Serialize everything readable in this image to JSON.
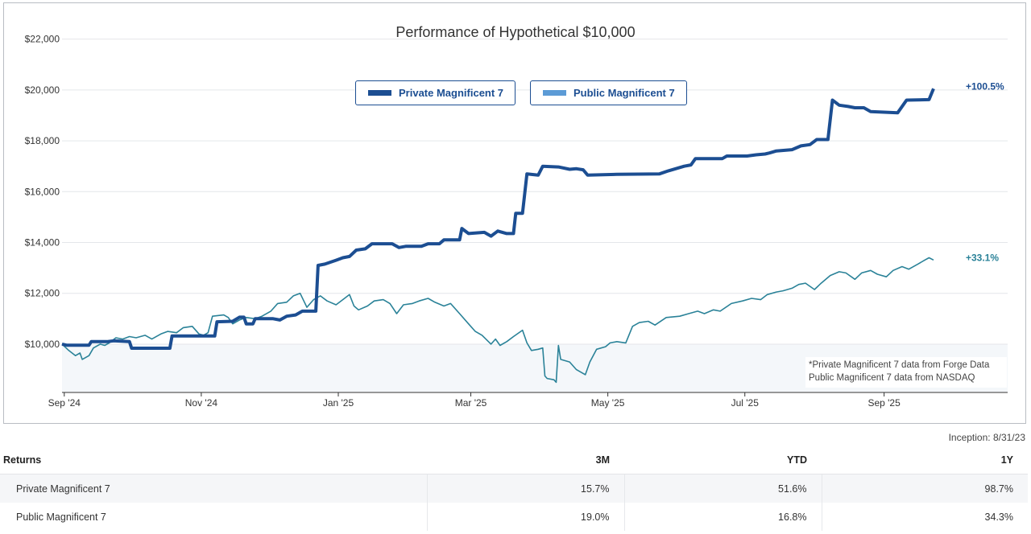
{
  "chart_data": {
    "type": "line",
    "title": "Performance of Hypothetical $10,000",
    "x_tick_labels": [
      "Sep '24",
      "Nov '24",
      "Jan '25",
      "Mar '25",
      "May '25",
      "Jul '25",
      "Sep '25"
    ],
    "y_tick_labels": [
      "$10,000",
      "$12,000",
      "$14,000",
      "$16,000",
      "$18,000",
      "$20,000",
      "$22,000"
    ],
    "y_ticks": [
      10000,
      12000,
      14000,
      16000,
      18000,
      20000,
      22000
    ],
    "ylim": [
      8100,
      22400
    ],
    "xlim": [
      "2024-08-31",
      "2025-10-26"
    ],
    "x_tick_dates": [
      "2024-09-01",
      "2024-11-01",
      "2025-01-01",
      "2025-03-01",
      "2025-05-01",
      "2025-07-01",
      "2025-09-01"
    ],
    "baseline": 10000,
    "grid": true,
    "legend_position": "top-center",
    "note_lines": [
      "*Private Magnificent 7 data from Forge Data",
      "Public Magnificent 7 data from NASDAQ"
    ],
    "series": [
      {
        "name": "Private Magnificent 7",
        "color": "#1c4e92",
        "end_label": "+100.5%",
        "points": [
          [
            "2024-08-31",
            10000
          ],
          [
            "2024-09-02",
            9960
          ],
          [
            "2024-09-12",
            9960
          ],
          [
            "2024-09-13",
            10100
          ],
          [
            "2024-09-20",
            10100
          ],
          [
            "2024-09-23",
            10130
          ],
          [
            "2024-09-30",
            10100
          ],
          [
            "2024-10-01",
            9840
          ],
          [
            "2024-10-18",
            9840
          ],
          [
            "2024-10-19",
            10320
          ],
          [
            "2024-11-07",
            10320
          ],
          [
            "2024-11-08",
            10880
          ],
          [
            "2024-11-15",
            10900
          ],
          [
            "2024-11-18",
            11060
          ],
          [
            "2024-11-20",
            11060
          ],
          [
            "2024-11-21",
            10800
          ],
          [
            "2024-11-24",
            10800
          ],
          [
            "2024-11-25",
            11000
          ],
          [
            "2024-12-03",
            11000
          ],
          [
            "2024-12-06",
            10950
          ],
          [
            "2024-12-09",
            11100
          ],
          [
            "2024-12-13",
            11150
          ],
          [
            "2024-12-16",
            11300
          ],
          [
            "2024-12-22",
            11300
          ],
          [
            "2024-12-23",
            13100
          ],
          [
            "2024-12-26",
            13150
          ],
          [
            "2024-12-31",
            13300
          ],
          [
            "2025-01-03",
            13400
          ],
          [
            "2025-01-06",
            13450
          ],
          [
            "2025-01-09",
            13700
          ],
          [
            "2025-01-13",
            13750
          ],
          [
            "2025-01-16",
            13950
          ],
          [
            "2025-01-25",
            13950
          ],
          [
            "2025-01-28",
            13800
          ],
          [
            "2025-01-31",
            13850
          ],
          [
            "2025-02-07",
            13850
          ],
          [
            "2025-02-10",
            13950
          ],
          [
            "2025-02-15",
            13950
          ],
          [
            "2025-02-17",
            14100
          ],
          [
            "2025-02-24",
            14100
          ],
          [
            "2025-02-25",
            14550
          ],
          [
            "2025-02-28",
            14350
          ],
          [
            "2025-03-07",
            14400
          ],
          [
            "2025-03-10",
            14250
          ],
          [
            "2025-03-13",
            14450
          ],
          [
            "2025-03-17",
            14350
          ],
          [
            "2025-03-20",
            14350
          ],
          [
            "2025-03-21",
            15150
          ],
          [
            "2025-03-24",
            15150
          ],
          [
            "2025-03-26",
            16700
          ],
          [
            "2025-03-31",
            16650
          ],
          [
            "2025-04-02",
            17000
          ],
          [
            "2025-04-09",
            16970
          ],
          [
            "2025-04-14",
            16880
          ],
          [
            "2025-04-17",
            16900
          ],
          [
            "2025-04-20",
            16860
          ],
          [
            "2025-04-22",
            16650
          ],
          [
            "2025-05-05",
            16680
          ],
          [
            "2025-05-24",
            16700
          ],
          [
            "2025-05-28",
            16820
          ],
          [
            "2025-06-04",
            17000
          ],
          [
            "2025-06-07",
            17050
          ],
          [
            "2025-06-09",
            17300
          ],
          [
            "2025-06-21",
            17300
          ],
          [
            "2025-06-23",
            17400
          ],
          [
            "2025-07-02",
            17400
          ],
          [
            "2025-07-06",
            17450
          ],
          [
            "2025-07-10",
            17480
          ],
          [
            "2025-07-12",
            17520
          ],
          [
            "2025-07-15",
            17600
          ],
          [
            "2025-07-22",
            17650
          ],
          [
            "2025-07-26",
            17800
          ],
          [
            "2025-07-30",
            17850
          ],
          [
            "2025-08-02",
            18050
          ],
          [
            "2025-08-07",
            18050
          ],
          [
            "2025-08-09",
            19600
          ],
          [
            "2025-08-12",
            19400
          ],
          [
            "2025-08-16",
            19350
          ],
          [
            "2025-08-19",
            19300
          ],
          [
            "2025-08-23",
            19300
          ],
          [
            "2025-08-26",
            19150
          ],
          [
            "2025-09-07",
            19100
          ],
          [
            "2025-09-11",
            19600
          ],
          [
            "2025-09-21",
            19620
          ],
          [
            "2025-09-23",
            20050
          ]
        ]
      },
      {
        "name": "Public Magnificent 7",
        "color": "#2a8298",
        "end_label": "+33.1%",
        "points": [
          [
            "2024-08-31",
            10000
          ],
          [
            "2024-09-03",
            9750
          ],
          [
            "2024-09-06",
            9550
          ],
          [
            "2024-09-08",
            9650
          ],
          [
            "2024-09-09",
            9400
          ],
          [
            "2024-09-12",
            9550
          ],
          [
            "2024-09-14",
            9850
          ],
          [
            "2024-09-17",
            10000
          ],
          [
            "2024-09-19",
            9950
          ],
          [
            "2024-09-21",
            10050
          ],
          [
            "2024-09-24",
            10250
          ],
          [
            "2024-09-27",
            10200
          ],
          [
            "2024-09-30",
            10300
          ],
          [
            "2024-10-03",
            10250
          ],
          [
            "2024-10-07",
            10350
          ],
          [
            "2024-10-10",
            10200
          ],
          [
            "2024-10-14",
            10400
          ],
          [
            "2024-10-17",
            10500
          ],
          [
            "2024-10-21",
            10450
          ],
          [
            "2024-10-24",
            10650
          ],
          [
            "2024-10-28",
            10700
          ],
          [
            "2024-10-31",
            10400
          ],
          [
            "2024-11-02",
            10350
          ],
          [
            "2024-11-04",
            10450
          ],
          [
            "2024-11-06",
            11100
          ],
          [
            "2024-11-11",
            11150
          ],
          [
            "2024-11-13",
            11050
          ],
          [
            "2024-11-15",
            10800
          ],
          [
            "2024-11-18",
            10950
          ],
          [
            "2024-11-21",
            11050
          ],
          [
            "2024-11-25",
            11000
          ],
          [
            "2024-11-28",
            11100
          ],
          [
            "2024-12-02",
            11300
          ],
          [
            "2024-12-05",
            11600
          ],
          [
            "2024-12-09",
            11650
          ],
          [
            "2024-12-12",
            11900
          ],
          [
            "2024-12-15",
            12000
          ],
          [
            "2024-12-18",
            11450
          ],
          [
            "2024-12-21",
            11750
          ],
          [
            "2024-12-24",
            11900
          ],
          [
            "2024-12-27",
            11700
          ],
          [
            "2024-12-31",
            11550
          ],
          [
            "2025-01-03",
            11750
          ],
          [
            "2025-01-06",
            11950
          ],
          [
            "2025-01-08",
            11500
          ],
          [
            "2025-01-10",
            11350
          ],
          [
            "2025-01-14",
            11500
          ],
          [
            "2025-01-17",
            11700
          ],
          [
            "2025-01-21",
            11750
          ],
          [
            "2025-01-24",
            11600
          ],
          [
            "2025-01-27",
            11200
          ],
          [
            "2025-01-30",
            11550
          ],
          [
            "2025-02-03",
            11600
          ],
          [
            "2025-02-06",
            11700
          ],
          [
            "2025-02-10",
            11800
          ],
          [
            "2025-02-13",
            11650
          ],
          [
            "2025-02-17",
            11500
          ],
          [
            "2025-02-20",
            11600
          ],
          [
            "2025-02-24",
            11200
          ],
          [
            "2025-02-28",
            10800
          ],
          [
            "2025-03-03",
            10500
          ],
          [
            "2025-03-06",
            10350
          ],
          [
            "2025-03-10",
            10000
          ],
          [
            "2025-03-12",
            10200
          ],
          [
            "2025-03-14",
            9950
          ],
          [
            "2025-03-17",
            10100
          ],
          [
            "2025-03-20",
            10300
          ],
          [
            "2025-03-24",
            10550
          ],
          [
            "2025-03-26",
            10050
          ],
          [
            "2025-03-28",
            9750
          ],
          [
            "2025-03-31",
            9800
          ],
          [
            "2025-04-02",
            9850
          ],
          [
            "2025-04-03",
            8750
          ],
          [
            "2025-04-04",
            8650
          ],
          [
            "2025-04-07",
            8600
          ],
          [
            "2025-04-08",
            8500
          ],
          [
            "2025-04-09",
            9950
          ],
          [
            "2025-04-10",
            9400
          ],
          [
            "2025-04-14",
            9300
          ],
          [
            "2025-04-17",
            9000
          ],
          [
            "2025-04-21",
            8800
          ],
          [
            "2025-04-23",
            9300
          ],
          [
            "2025-04-26",
            9800
          ],
          [
            "2025-04-30",
            9900
          ],
          [
            "2025-05-02",
            10050
          ],
          [
            "2025-05-05",
            10100
          ],
          [
            "2025-05-09",
            10050
          ],
          [
            "2025-05-12",
            10700
          ],
          [
            "2025-05-15",
            10850
          ],
          [
            "2025-05-19",
            10900
          ],
          [
            "2025-05-22",
            10750
          ],
          [
            "2025-05-27",
            11050
          ],
          [
            "2025-06-02",
            11100
          ],
          [
            "2025-06-06",
            11200
          ],
          [
            "2025-06-10",
            11300
          ],
          [
            "2025-06-13",
            11200
          ],
          [
            "2025-06-17",
            11350
          ],
          [
            "2025-06-20",
            11300
          ],
          [
            "2025-06-25",
            11600
          ],
          [
            "2025-06-30",
            11700
          ],
          [
            "2025-07-04",
            11800
          ],
          [
            "2025-07-08",
            11750
          ],
          [
            "2025-07-11",
            11950
          ],
          [
            "2025-07-15",
            12050
          ],
          [
            "2025-07-18",
            12100
          ],
          [
            "2025-07-22",
            12200
          ],
          [
            "2025-07-25",
            12350
          ],
          [
            "2025-07-28",
            12400
          ],
          [
            "2025-08-01",
            12150
          ],
          [
            "2025-08-04",
            12400
          ],
          [
            "2025-08-08",
            12700
          ],
          [
            "2025-08-12",
            12850
          ],
          [
            "2025-08-15",
            12800
          ],
          [
            "2025-08-19",
            12550
          ],
          [
            "2025-08-22",
            12800
          ],
          [
            "2025-08-26",
            12900
          ],
          [
            "2025-08-29",
            12750
          ],
          [
            "2025-09-02",
            12650
          ],
          [
            "2025-09-05",
            12900
          ],
          [
            "2025-09-09",
            13050
          ],
          [
            "2025-09-12",
            12950
          ],
          [
            "2025-09-16",
            13150
          ],
          [
            "2025-09-19",
            13300
          ],
          [
            "2025-09-21",
            13400
          ],
          [
            "2025-09-23",
            13310
          ]
        ]
      }
    ]
  },
  "returns": {
    "inception": "Inception: 8/31/23",
    "headers": [
      "Returns",
      "3M",
      "YTD",
      "1Y"
    ],
    "rows": [
      [
        "Private Magnificent 7",
        "15.7%",
        "51.6%",
        "98.7%"
      ],
      [
        "Public Magnificent 7",
        "19.0%",
        "16.8%",
        "34.3%"
      ]
    ]
  }
}
